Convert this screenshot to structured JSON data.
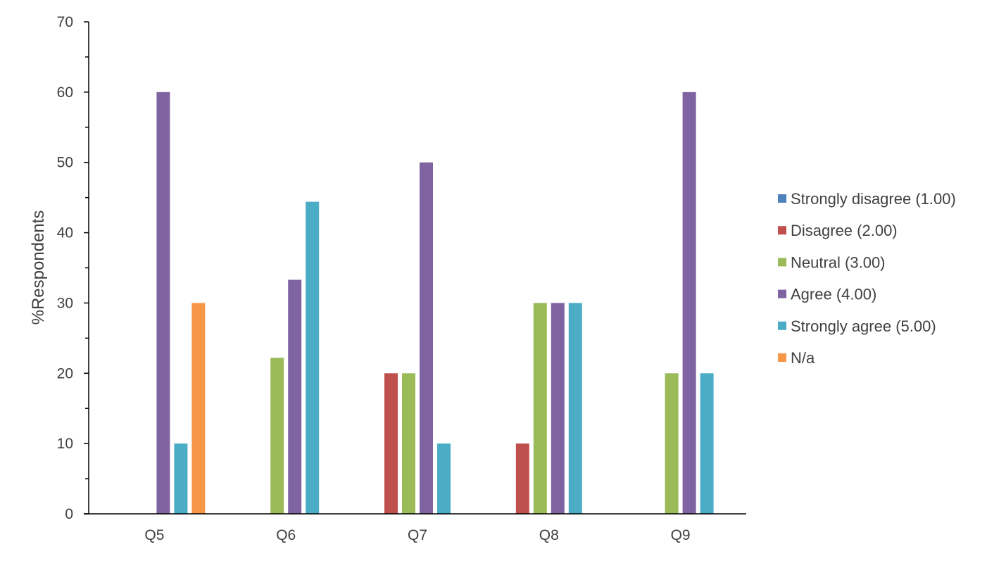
{
  "chart_data": {
    "type": "bar",
    "title": "",
    "xlabel": "",
    "ylabel": "%Respondents",
    "ylim": [
      0,
      70
    ],
    "y_ticks": [
      0,
      10,
      20,
      30,
      40,
      50,
      60,
      70
    ],
    "categories": [
      "Q5",
      "Q6",
      "Q7",
      "Q8",
      "Q9"
    ],
    "grid": false,
    "legend_position": "right",
    "series": [
      {
        "name": "Strongly disagree (1.00)",
        "color": "#4F81BD",
        "values": [
          0,
          0,
          0,
          0,
          0
        ]
      },
      {
        "name": "Disagree (2.00)",
        "color": "#C0504D",
        "values": [
          0,
          0,
          20,
          10,
          0
        ]
      },
      {
        "name": "Neutral (3.00)",
        "color": "#9BBB59",
        "values": [
          0,
          22.2,
          20,
          30,
          20
        ]
      },
      {
        "name": "Agree (4.00)",
        "color": "#8064A2",
        "values": [
          60,
          33.3,
          50,
          30,
          60
        ]
      },
      {
        "name": "Strongly agree (5.00)",
        "color": "#4BACC6",
        "values": [
          10,
          44.4,
          10,
          30,
          20
        ]
      },
      {
        "name": "N/a",
        "color": "#F79646",
        "values": [
          30,
          0,
          0,
          0,
          0
        ]
      }
    ]
  }
}
